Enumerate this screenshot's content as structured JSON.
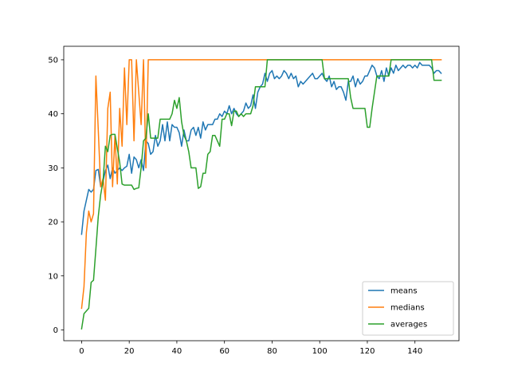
{
  "chart_data": {
    "type": "line",
    "title": "",
    "xlabel": "",
    "ylabel": "",
    "xlim": [
      -7.5,
      158.5
    ],
    "ylim": [
      -2.0,
      52.5
    ],
    "xticks": [
      0,
      20,
      40,
      60,
      80,
      100,
      120,
      140
    ],
    "yticks": [
      0,
      10,
      20,
      30,
      40,
      50
    ],
    "grid": false,
    "legend_position": "bottom-right",
    "series": [
      {
        "name": "means",
        "color": "#1f77b4",
        "x": [
          0,
          1,
          2,
          3,
          4,
          5,
          6,
          7,
          8,
          9,
          10,
          11,
          12,
          13,
          14,
          15,
          16,
          17,
          18,
          19,
          20,
          21,
          22,
          23,
          24,
          25,
          26,
          27,
          28,
          29,
          30,
          31,
          32,
          33,
          34,
          35,
          36,
          37,
          38,
          39,
          40,
          41,
          42,
          43,
          44,
          45,
          46,
          47,
          48,
          49,
          50,
          51,
          52,
          53,
          54,
          55,
          56,
          57,
          58,
          59,
          60,
          61,
          62,
          63,
          64,
          65,
          66,
          67,
          68,
          69,
          70,
          71,
          72,
          73,
          74,
          75,
          76,
          77,
          78,
          79,
          80,
          81,
          82,
          83,
          84,
          85,
          86,
          87,
          88,
          89,
          90,
          91,
          92,
          93,
          94,
          95,
          96,
          97,
          98,
          99,
          100,
          101,
          102,
          103,
          104,
          105,
          106,
          107,
          108,
          109,
          110,
          111,
          112,
          113,
          114,
          115,
          116,
          117,
          118,
          119,
          120,
          121,
          122,
          123,
          124,
          125,
          126,
          127,
          128,
          129,
          130,
          131,
          132,
          133,
          134,
          135,
          136,
          137,
          138,
          139,
          140,
          141,
          142,
          143,
          144,
          145,
          146,
          147,
          148,
          149,
          150,
          151
        ],
        "y": [
          17.7,
          22.0,
          24.0,
          26.0,
          25.5,
          26.0,
          29.5,
          29.7,
          26.5,
          27.5,
          29.5,
          30.5,
          28.0,
          30.0,
          29.0,
          29.5,
          30.0,
          29.5,
          30.0,
          30.3,
          32.5,
          29.0,
          32.0,
          31.5,
          30.0,
          31.5,
          29.5,
          35.0,
          34.5,
          32.5,
          33.0,
          36.0,
          34.0,
          35.0,
          38.0,
          35.0,
          38.5,
          35.0,
          38.0,
          37.5,
          37.5,
          36.5,
          34.0,
          37.0,
          35.0,
          35.0,
          37.0,
          37.5,
          36.0,
          37.5,
          35.5,
          38.5,
          37.0,
          38.0,
          38.0,
          38.0,
          39.0,
          39.0,
          40.0,
          39.5,
          40.5,
          40.0,
          41.5,
          40.0,
          41.0,
          40.0,
          39.5,
          40.0,
          40.5,
          42.0,
          41.0,
          41.5,
          43.5,
          41.0,
          44.0,
          45.0,
          45.5,
          47.5,
          46.0,
          47.5,
          48.0,
          46.5,
          47.0,
          46.5,
          47.0,
          48.0,
          47.5,
          46.5,
          47.5,
          46.5,
          47.0,
          45.0,
          46.0,
          45.5,
          46.0,
          46.5,
          47.0,
          47.5,
          46.5,
          46.5,
          47.0,
          47.5,
          46.5,
          46.0,
          47.0,
          45.0,
          46.0,
          44.5,
          45.0,
          45.0,
          44.0,
          42.5,
          46.0,
          46.0,
          47.0,
          45.0,
          46.5,
          45.5,
          46.0,
          47.0,
          47.0,
          48.0,
          49.0,
          48.5,
          47.0,
          46.5,
          48.0,
          46.0,
          48.5,
          47.0,
          48.5,
          47.5,
          49.0,
          48.0,
          48.5,
          49.0,
          48.5,
          49.0,
          49.0,
          48.5,
          49.0,
          48.5,
          49.5,
          49.0,
          49.0,
          49.0,
          49.0,
          48.5,
          47.5,
          48.0,
          48.0,
          47.5
        ]
      },
      {
        "name": "medians",
        "color": "#ff7f0e",
        "x": [
          0,
          1,
          2,
          3,
          4,
          5,
          6,
          7,
          8,
          9,
          10,
          11,
          12,
          13,
          14,
          15,
          16,
          17,
          18,
          19,
          20,
          21,
          22,
          23,
          24,
          25,
          26,
          27,
          28,
          29,
          151
        ],
        "y": [
          4.0,
          8.0,
          18.0,
          22.0,
          20.0,
          21.5,
          47.0,
          37.0,
          26.5,
          28.0,
          24.0,
          41.0,
          44.0,
          26.5,
          36.0,
          27.0,
          41.0,
          34.0,
          48.5,
          38.0,
          50.0,
          50.0,
          35.0,
          50.0,
          44.0,
          38.0,
          50.0,
          30.0,
          50.0,
          50.0,
          50.0
        ]
      },
      {
        "name": "averages",
        "color": "#2ca02c",
        "x": [
          0,
          1,
          3,
          4,
          5,
          6,
          7,
          8,
          9,
          10,
          11,
          12,
          13,
          14,
          16,
          17,
          18,
          19,
          20,
          21,
          22,
          23,
          24,
          25,
          26,
          27,
          28,
          29,
          30,
          31,
          32,
          33,
          34,
          35,
          36,
          37,
          38,
          39,
          40,
          41,
          42,
          43,
          44,
          45,
          46,
          47,
          48,
          49,
          50,
          51,
          52,
          53,
          54,
          55,
          56,
          57,
          58,
          59,
          60,
          61,
          62,
          63,
          64,
          65,
          66,
          67,
          68,
          69,
          70,
          71,
          72,
          73,
          74,
          75,
          76,
          77,
          78,
          79,
          80,
          81,
          100,
          101,
          102,
          103,
          104,
          110,
          111,
          112,
          113,
          114,
          115,
          116,
          117,
          118,
          119,
          120,
          121,
          122,
          123,
          124,
          125,
          126,
          127,
          128,
          129,
          130,
          131,
          146,
          147,
          148,
          151
        ],
        "y": [
          0.2,
          3.0,
          4.0,
          8.8,
          9.2,
          15.0,
          21.0,
          25.0,
          27.5,
          34.0,
          33.0,
          36.0,
          36.2,
          36.2,
          31.0,
          27.0,
          26.8,
          26.8,
          26.8,
          26.8,
          26.0,
          26.2,
          26.3,
          30.0,
          35.0,
          35.5,
          40.0,
          35.5,
          35.5,
          35.5,
          35.5,
          39.0,
          39.0,
          39.0,
          39.0,
          39.0,
          40.0,
          42.5,
          41.0,
          43.0,
          38.5,
          36.0,
          35.0,
          33.0,
          30.0,
          30.0,
          30.0,
          26.2,
          26.5,
          29.0,
          29.0,
          32.5,
          33.0,
          36.0,
          36.0,
          35.0,
          34.0,
          39.0,
          39.0,
          40.0,
          40.0,
          37.8,
          40.5,
          40.5,
          39.5,
          40.0,
          39.5,
          40.0,
          40.0,
          40.0,
          41.5,
          45.0,
          45.0,
          45.0,
          45.0,
          45.0,
          50.0,
          50.0,
          50.0,
          50.0,
          50.0,
          50.0,
          46.5,
          46.5,
          46.5,
          46.5,
          46.5,
          46.5,
          43.0,
          41.0,
          41.0,
          41.0,
          41.0,
          41.0,
          41.0,
          37.5,
          37.5,
          41.0,
          44.0,
          47.0,
          47.0,
          47.0,
          47.0,
          47.0,
          47.0,
          50.0,
          50.0,
          50.0,
          50.0,
          46.2,
          46.2
        ]
      }
    ]
  }
}
